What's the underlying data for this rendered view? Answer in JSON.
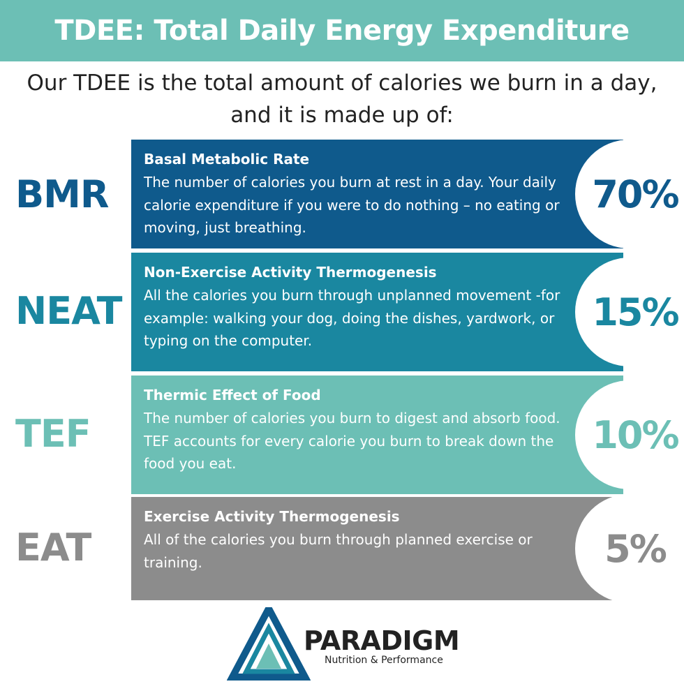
{
  "header": {
    "title": "TDEE: Total Daily Energy Expenditure",
    "background_color": "#6cbfb5"
  },
  "intro": {
    "text": "Our TDEE is the total amount of calories we burn in a day, and it is made up of:"
  },
  "components": [
    {
      "abbr": "BMR",
      "title": "Basal Metabolic  Rate",
      "description": "The number of calories you burn at rest in a day. Your daily calorie expenditure if you were to do nothing – no eating or moving, just breathing.",
      "percent": "70%",
      "color": "#0f5a8c"
    },
    {
      "abbr": "NEAT",
      "title": "Non-Exercise Activity Thermogenesis",
      "description": "All the calories you burn through unplanned movement -for example: walking your dog, doing the dishes, yardwork, or typing on the computer.",
      "percent": "15%",
      "color": "#1a87a0"
    },
    {
      "abbr": "TEF",
      "title": "Thermic Effect of Food",
      "description": "The number of calories you burn to digest and absorb food. TEF accounts for every calorie you burn to break down the food you eat.",
      "percent": "10%",
      "color": "#6cbfb5"
    },
    {
      "abbr": "EAT",
      "title": "Exercise Activity Thermogenesis",
      "description": "All of the calories you burn through planned exercise or training.",
      "percent": "5%",
      "color": "#8c8c8c"
    }
  ],
  "brand": {
    "name": "PARADIGM",
    "tagline": "Nutrition & Performance",
    "icon": "paradigm-triangle-logo"
  }
}
